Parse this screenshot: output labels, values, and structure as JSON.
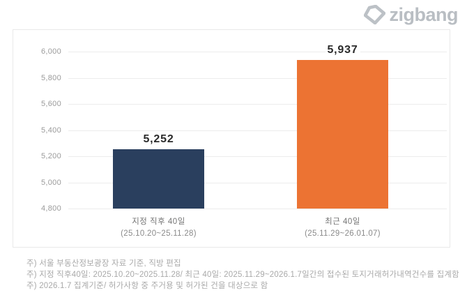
{
  "logo": {
    "text": "zigbang",
    "color": "#b9bec3"
  },
  "chart_data": {
    "type": "bar",
    "title": "",
    "xlabel": "",
    "ylabel": "",
    "categories": [
      "지정 직후 40일",
      "최근 40일"
    ],
    "category_sublabels": [
      "(25.10.20~25.11.28)",
      "(25.11.29~26.01.07)"
    ],
    "values": [
      5252,
      5937
    ],
    "value_labels": [
      "5,252",
      "5,937"
    ],
    "bar_colors": [
      "#2a3f5e",
      "#ec7333"
    ],
    "ylim": [
      4800,
      6000
    ],
    "ytick_values": [
      6000,
      5800,
      5600,
      5400,
      5200,
      5000,
      4800
    ],
    "ytick_labels": [
      "6,000",
      "5,800",
      "5,600",
      "5,400",
      "5,200",
      "5,000",
      "4,800"
    ],
    "grid": true,
    "legend": "none"
  },
  "footnotes": [
    "주) 서울 부동산정보광장 자료 기준, 직방 편집",
    "주) 지정 직후40일: 2025.10.20~2025.11.28/ 최근 40일: 2025.11.29~2026.1.7일간의 접수된 토지거래허가내역건수를 집계함",
    "주) 2026.1.7 집계기준/ 허가사항 중 주거용 및 허가된 건을 대상으로 함"
  ]
}
